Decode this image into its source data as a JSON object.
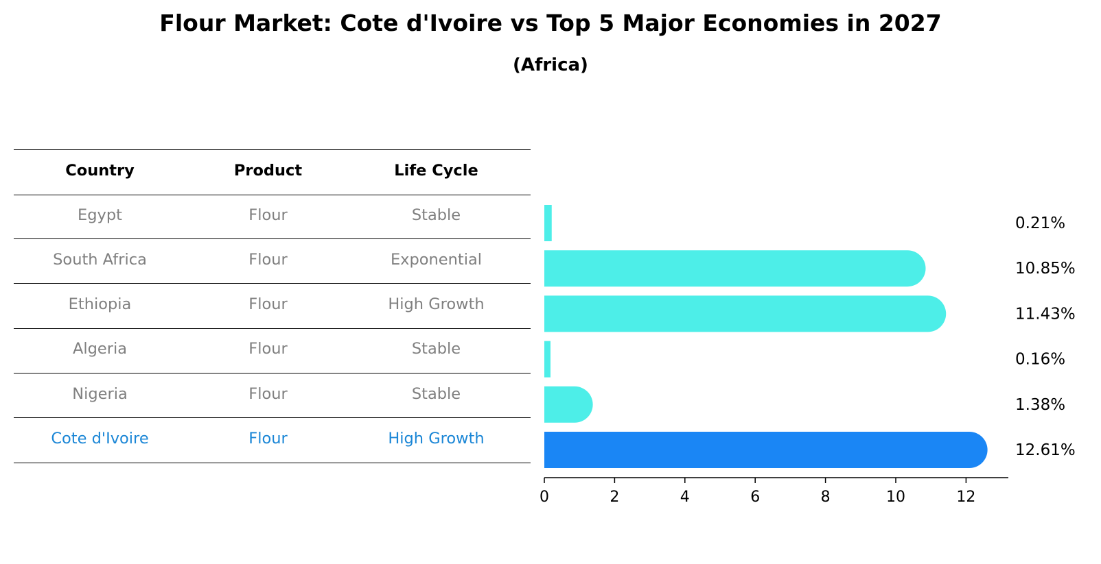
{
  "title": "Flour Market: Cote d'Ivoire vs Top 5 Major Economies in 2027",
  "subtitle": "(Africa)",
  "table": {
    "headers": [
      "Country",
      "Product",
      "Life Cycle"
    ],
    "rows": [
      {
        "country": "Egypt",
        "product": "Flour",
        "life_cycle": "Stable"
      },
      {
        "country": "South Africa",
        "product": "Flour",
        "life_cycle": "Exponential"
      },
      {
        "country": "Ethiopia",
        "product": "Flour",
        "life_cycle": "High Growth"
      },
      {
        "country": "Algeria",
        "product": "Flour",
        "life_cycle": "Stable"
      },
      {
        "country": "Nigeria",
        "product": "Flour",
        "life_cycle": "Stable"
      },
      {
        "country": "Cote d'Ivoire",
        "product": "Flour",
        "life_cycle": "High Growth"
      }
    ]
  },
  "chart_data": {
    "type": "bar",
    "orientation": "horizontal",
    "categories": [
      "Egypt",
      "South Africa",
      "Ethiopia",
      "Algeria",
      "Nigeria",
      "Cote d'Ivoire"
    ],
    "values": [
      0.21,
      10.85,
      11.43,
      0.16,
      1.38,
      12.61
    ],
    "value_labels": [
      "0.21%",
      "10.85%",
      "11.43%",
      "0.16%",
      "1.38%",
      "12.61%"
    ],
    "highlight_category": "Cote d'Ivoire",
    "xlim": [
      0,
      13.2
    ],
    "xticks": [
      0,
      2,
      4,
      6,
      8,
      10,
      12
    ],
    "grid": false,
    "colors": {
      "bar": "#4deee8",
      "highlight": "#1a86f5",
      "highlight_text": "#1a86d6",
      "muted_text": "#808080"
    }
  }
}
